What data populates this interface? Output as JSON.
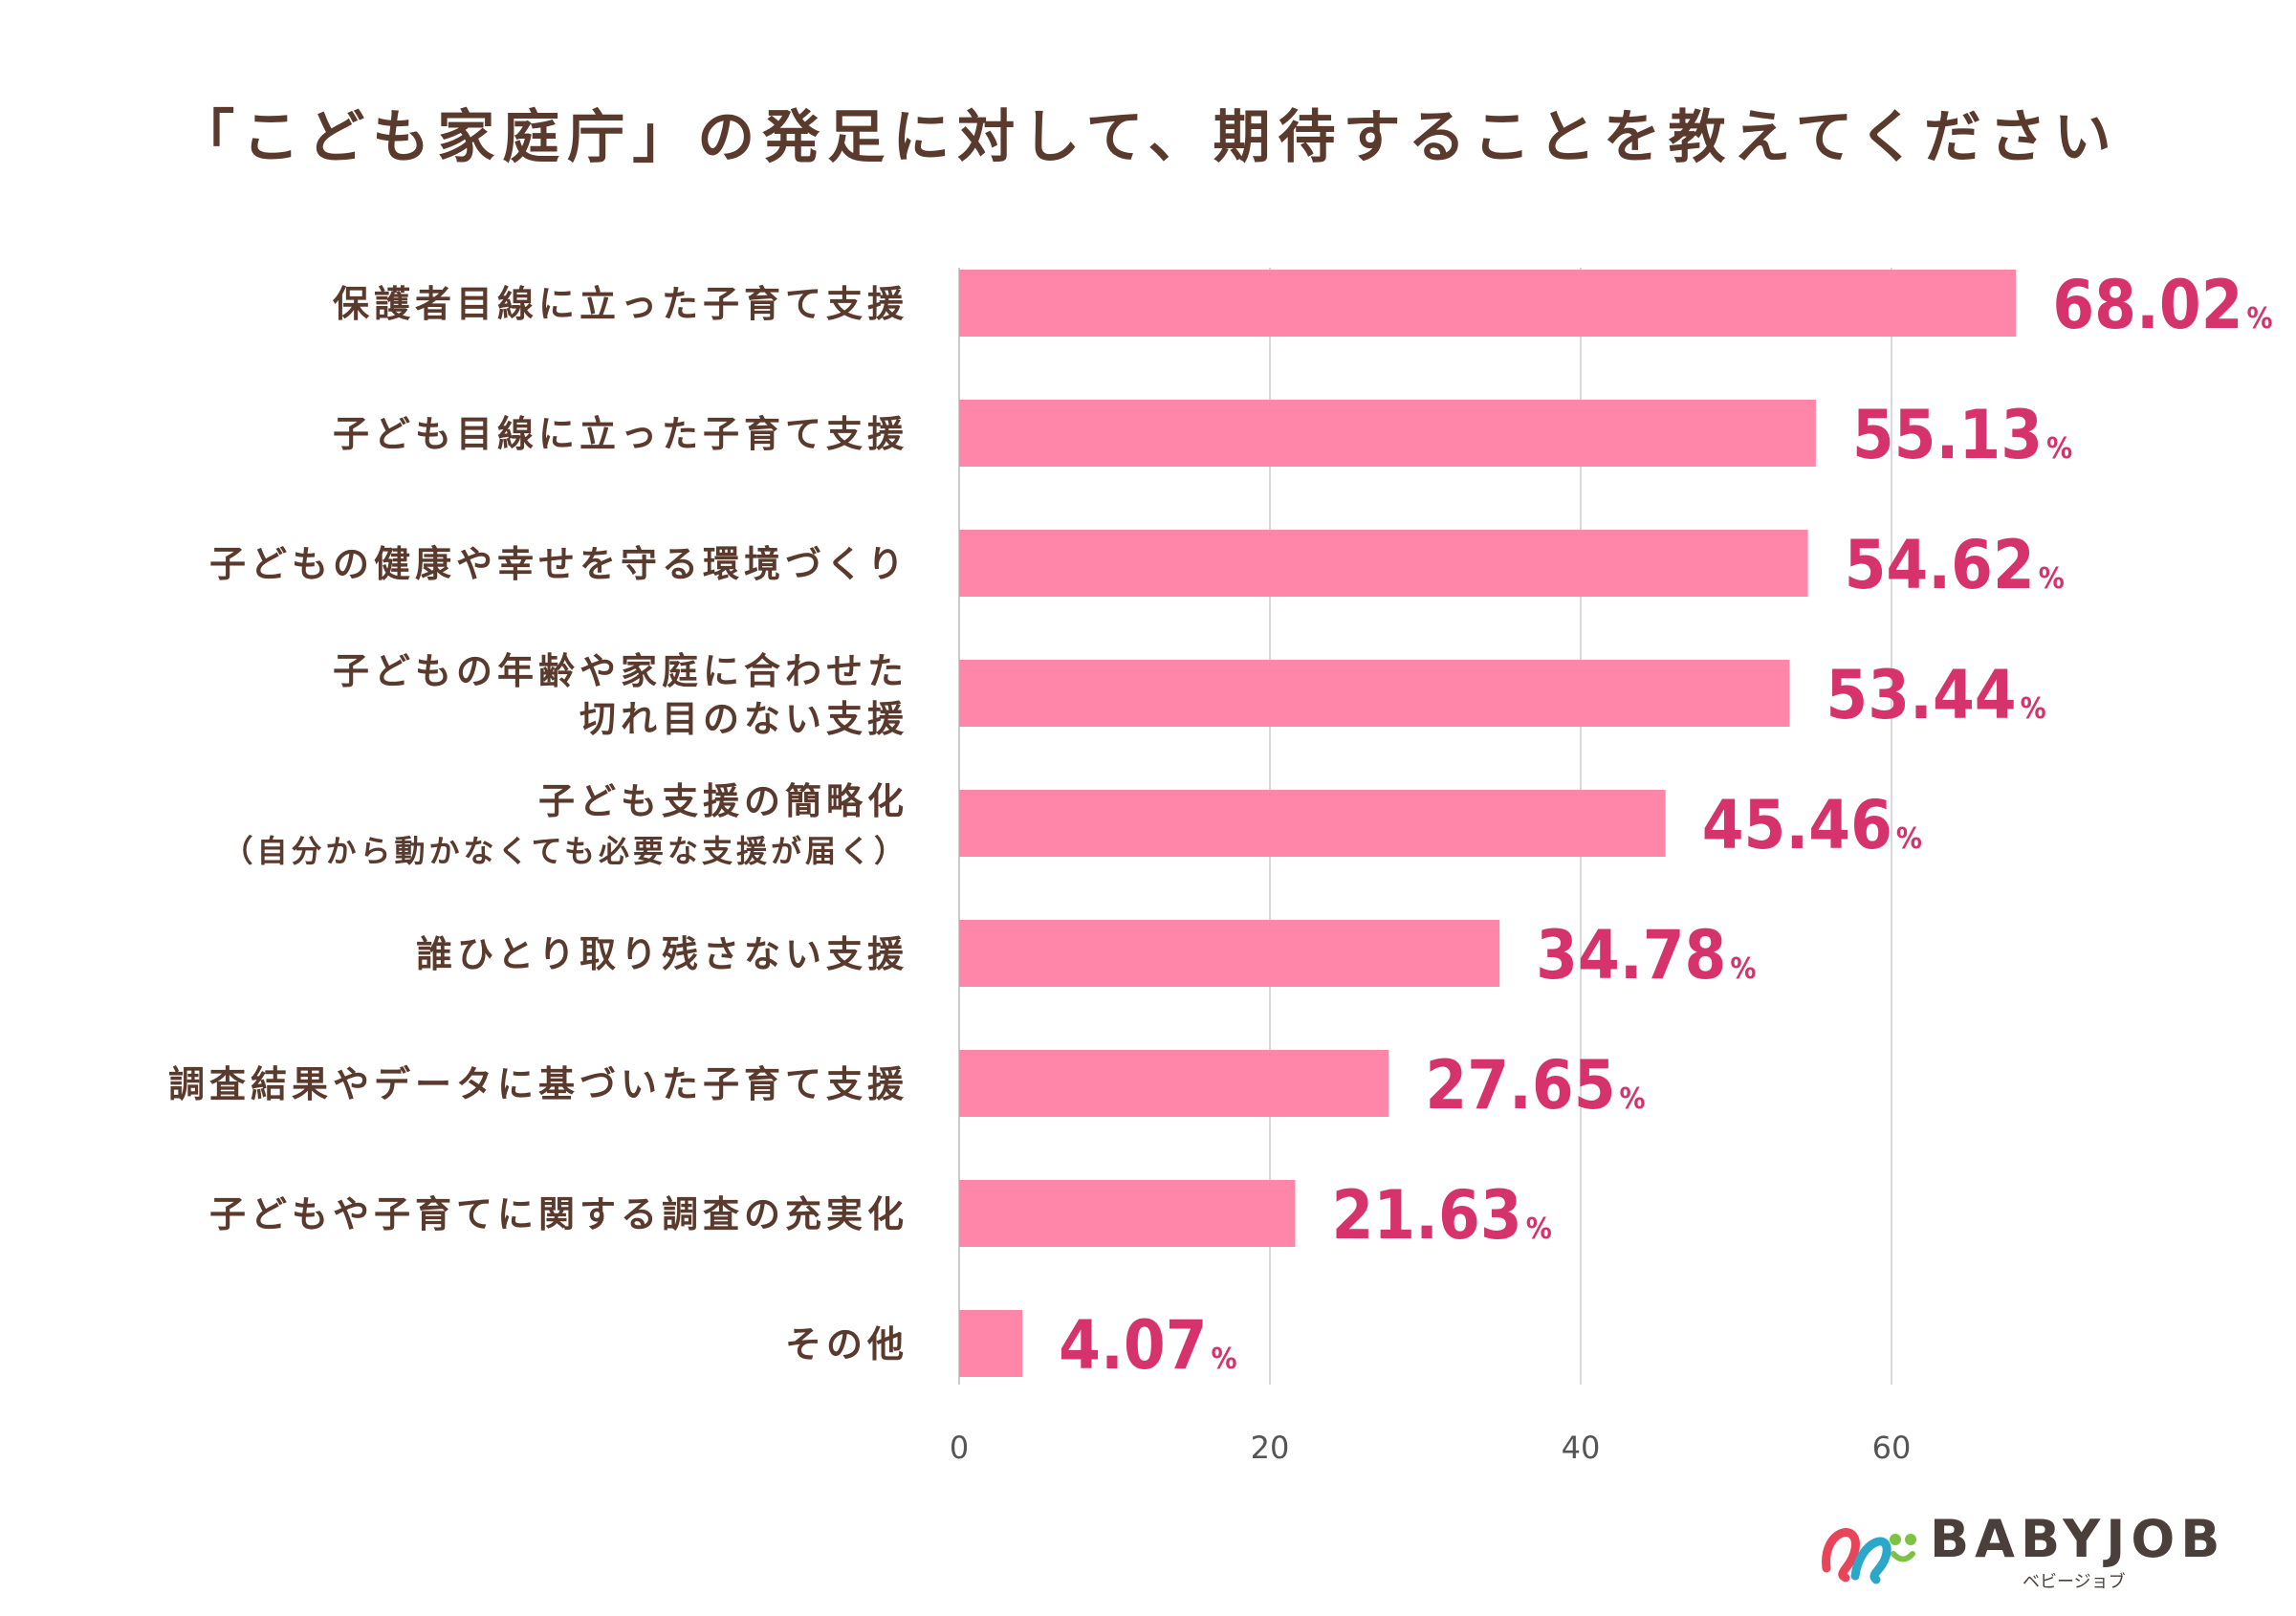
{
  "chart_data": {
    "type": "bar",
    "orientation": "horizontal",
    "title": "「こども家庭庁」の発足に対して、期待することを教えてください",
    "categories": [
      [
        "保護者目線に立った子育て支援"
      ],
      [
        "子ども目線に立った子育て支援"
      ],
      [
        "子どもの健康や幸せを守る環境づくり"
      ],
      [
        "子どもの年齢や家庭に合わせた",
        "切れ目のない支援"
      ],
      [
        "子ども支援の簡略化",
        "（自分から動かなくても必要な支援が届く）"
      ],
      [
        "誰ひとり取り残さない支援"
      ],
      [
        "調査結果やデータに基づいた子育て支援"
      ],
      [
        "子どもや子育てに関する調査の充実化"
      ],
      [
        "その他"
      ]
    ],
    "values": [
      68.02,
      55.13,
      54.62,
      53.44,
      45.46,
      34.78,
      27.65,
      21.63,
      4.07
    ],
    "value_labels": [
      "68.02",
      "55.13",
      "54.62",
      "53.44",
      "45.46",
      "34.78",
      "27.65",
      "21.63",
      "4.07"
    ],
    "value_unit": "%",
    "xlim": [
      0,
      75
    ],
    "xticks": [
      0,
      20,
      40,
      60
    ],
    "grid": true,
    "bar_color": "#ff86a8",
    "label_color": "#d6336c"
  },
  "logo": {
    "name": "BABYJOB",
    "subtitle": "ベビージョブ"
  }
}
